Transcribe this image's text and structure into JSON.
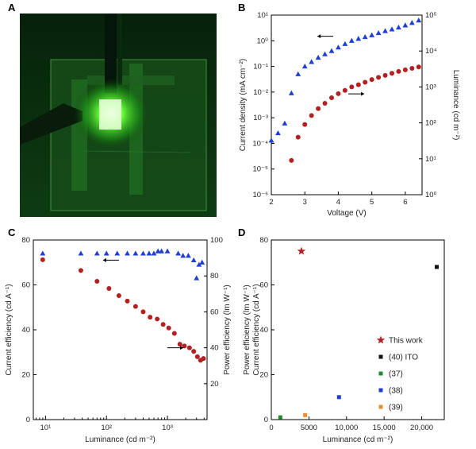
{
  "panels": {
    "a": "A",
    "b": "B",
    "c": "C",
    "d": "D"
  },
  "colors": {
    "blue": "#1f3fd6",
    "red": "#b41f1f",
    "black": "#111111",
    "green": "#1e8c2b",
    "orange": "#f08c2c"
  },
  "chart_data": [
    {
      "panel": "B",
      "type": "scatter",
      "xlabel": "Voltage (V)",
      "ylabel": "Current density (mA cm⁻²)",
      "ylabel2": "Luminance (cd m⁻²)",
      "xlim": [
        2,
        6.5
      ],
      "ylim_log": [
        -6,
        1
      ],
      "y2lim_log": [
        0,
        5
      ],
      "xticks": [
        "2",
        "3",
        "4",
        "5",
        "6"
      ],
      "yticks": [
        "10⁻⁶",
        "10⁻⁵",
        "10⁻⁴",
        "10⁻³",
        "10⁻²",
        "10⁻¹",
        "10⁰",
        "10¹"
      ],
      "y2ticks": [
        "10⁰",
        "10¹",
        "10²",
        "10³",
        "10⁴",
        "10⁵"
      ],
      "series": [
        {
          "axis": "left",
          "marker": "triangle",
          "color": "blue",
          "x": [
            2.0,
            2.2,
            2.4,
            2.6,
            2.8,
            3.0,
            3.2,
            3.4,
            3.6,
            3.8,
            4.0,
            4.2,
            4.4,
            4.6,
            4.8,
            5.0,
            5.2,
            5.4,
            5.6,
            5.8,
            6.0,
            6.2,
            6.4
          ],
          "y": [
            0.00013,
            0.00025,
            0.0006,
            0.009,
            0.05,
            0.1,
            0.15,
            0.22,
            0.3,
            0.4,
            0.55,
            0.75,
            1.0,
            1.2,
            1.4,
            1.65,
            2.0,
            2.4,
            2.8,
            3.3,
            4.0,
            5.0,
            6.2
          ]
        },
        {
          "axis": "right",
          "marker": "circle",
          "color": "red",
          "x": [
            2.6,
            2.8,
            3.0,
            3.2,
            3.4,
            3.6,
            3.8,
            4.0,
            4.2,
            4.4,
            4.6,
            4.8,
            5.0,
            5.2,
            5.4,
            5.6,
            5.8,
            6.0,
            6.2,
            6.4
          ],
          "y": [
            9,
            40,
            90,
            160,
            250,
            350,
            500,
            650,
            800,
            1000,
            1150,
            1350,
            1600,
            1850,
            2100,
            2400,
            2700,
            3000,
            3300,
            3600
          ]
        }
      ],
      "annotations": [
        {
          "arrow": "left",
          "x": 3.85,
          "y": 1.5
        },
        {
          "arrow": "right",
          "x": 4.3,
          "y": 0.0085
        }
      ]
    },
    {
      "panel": "C",
      "type": "scatter",
      "xlabel": "Luminance (cd m⁻²)",
      "ylabel": "Current efficiency (cd A⁻¹)",
      "ylabel2": "Power efficiency (lm W⁻¹)",
      "xlim_log": [
        0.8,
        3.65
      ],
      "ylim": [
        0,
        80
      ],
      "y2lim": [
        0,
        100
      ],
      "yticks": [
        "0",
        "20",
        "40",
        "60",
        "80"
      ],
      "y2ticks": [
        "20",
        "40",
        "60",
        "80",
        "100"
      ],
      "xticks": [
        "10¹",
        "10²",
        "10³"
      ],
      "series": [
        {
          "axis": "left",
          "marker": "triangle",
          "color": "blue",
          "x": [
            9,
            38,
            70,
            100,
            150,
            220,
            300,
            400,
            500,
            600,
            700,
            800,
            1000,
            1500,
            1800,
            2200,
            2700,
            3000,
            3300,
            3700
          ],
          "y": [
            74,
            74,
            74,
            74,
            74,
            74,
            74,
            74,
            74,
            74,
            75,
            75,
            75,
            74,
            73,
            73,
            71,
            63,
            69,
            70
          ]
        },
        {
          "axis": "right",
          "marker": "circle",
          "color": "red",
          "x": [
            9,
            38,
            70,
            110,
            160,
            220,
            300,
            400,
            520,
            680,
            850,
            1050,
            1300,
            1600,
            1900,
            2300,
            2700,
            3100,
            3500,
            3900
          ],
          "y": [
            89,
            83,
            77,
            73,
            69,
            66,
            63,
            60,
            57,
            56,
            53,
            51,
            48,
            42,
            41,
            40,
            38,
            35,
            33,
            34
          ]
        }
      ],
      "annotations": [
        {
          "arrow": "left",
          "x": 160,
          "y": 71
        },
        {
          "arrow": "right",
          "x": 1000,
          "y": 40
        }
      ]
    },
    {
      "panel": "D",
      "type": "scatter",
      "xlabel": "Luminance (cd m⁻²)",
      "ylabel": "Power efficiency (lm W⁻¹)",
      "ylabel2": "Current efficiency (cd A⁻¹)",
      "xlim": [
        0,
        23000
      ],
      "ylim": [
        0,
        80
      ],
      "xticks": [
        "0",
        "5000",
        "10,000",
        "15,000",
        "20,000"
      ],
      "yticks": [
        "0",
        "20",
        "40",
        "60",
        "80"
      ],
      "series": [
        {
          "name": "This work",
          "marker": "star",
          "color": "red",
          "x": [
            4000
          ],
          "y": [
            75
          ]
        },
        {
          "name": "(40) ITO",
          "marker": "square",
          "color": "black",
          "x": [
            22000
          ],
          "y": [
            68
          ]
        },
        {
          "name": "(37)",
          "marker": "square",
          "color": "green",
          "x": [
            1200
          ],
          "y": [
            1
          ]
        },
        {
          "name": "(38)",
          "marker": "square",
          "color": "blue",
          "x": [
            9000
          ],
          "y": [
            10
          ]
        },
        {
          "name": "(39)",
          "marker": "square",
          "color": "orange",
          "x": [
            4500
          ],
          "y": [
            2
          ]
        }
      ],
      "legend": [
        "This work",
        "(40) ITO",
        "(37)",
        "(38)",
        "(39)"
      ]
    }
  ]
}
